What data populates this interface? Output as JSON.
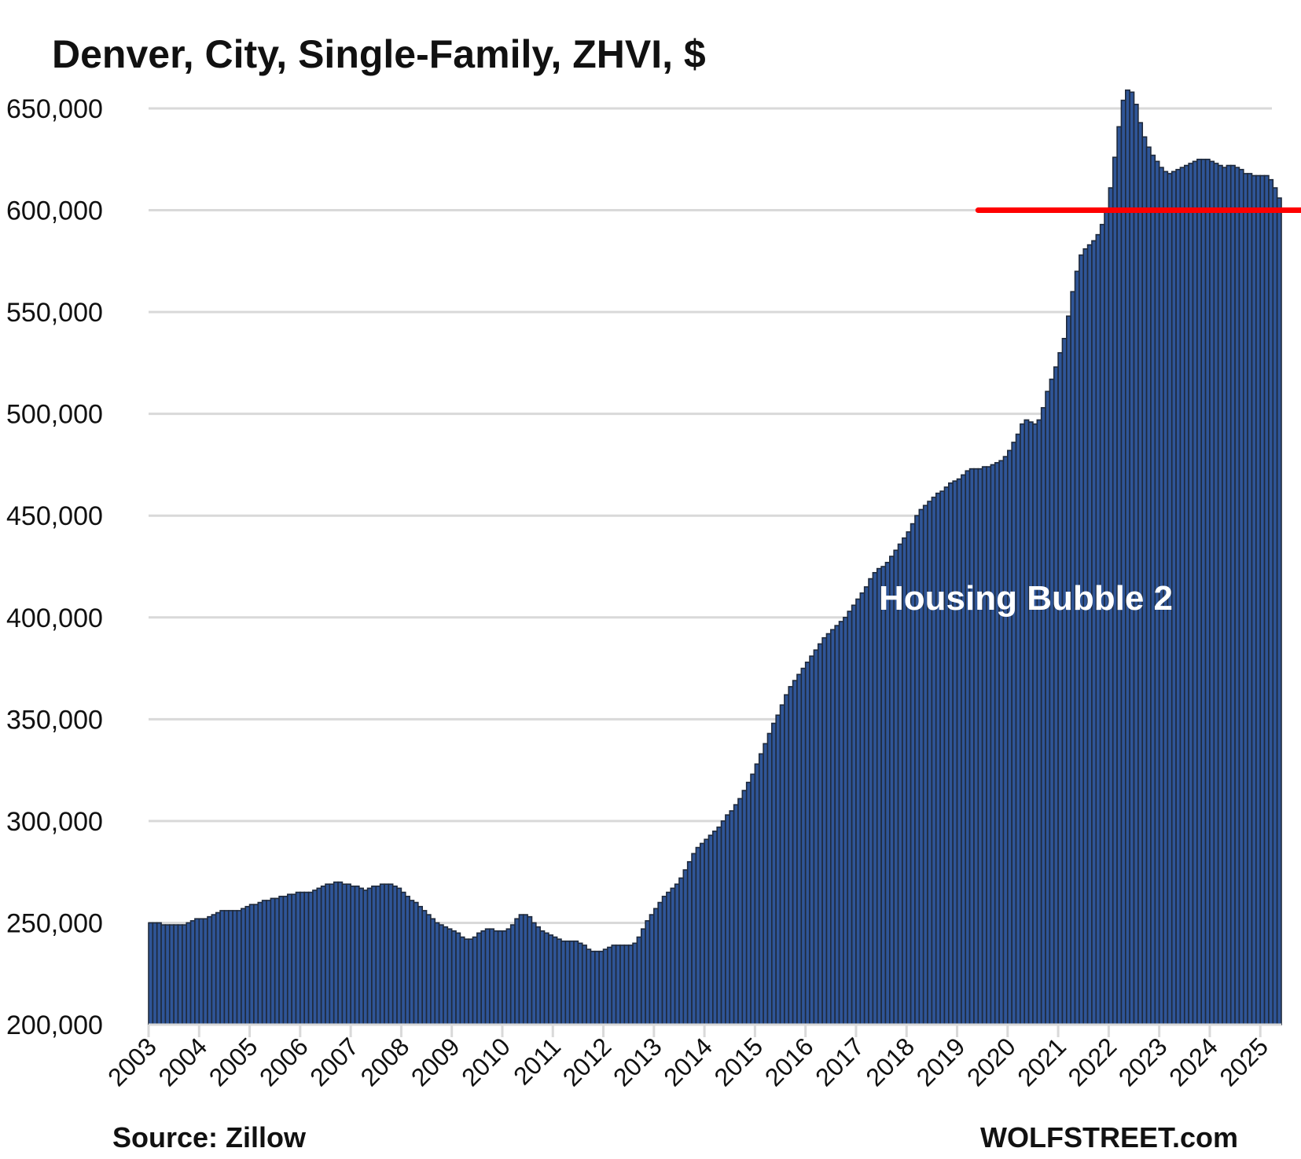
{
  "chart_data": {
    "type": "bar",
    "title": "Denver, City, Single-Family, ZHVI, $",
    "xlabel": "",
    "ylabel": "",
    "ylim": [
      200000,
      650000
    ],
    "yticks": [
      200000,
      250000,
      300000,
      350000,
      400000,
      450000,
      500000,
      550000,
      600000,
      650000
    ],
    "ytick_labels": [
      "200,000",
      "250,000",
      "300,000",
      "350,000",
      "400,000",
      "450,000",
      "500,000",
      "550,000",
      "600,000",
      "650,000"
    ],
    "xtick_labels": [
      "2003",
      "2004",
      "2005",
      "2006",
      "2007",
      "2008",
      "2009",
      "2010",
      "2011",
      "2012",
      "2013",
      "2014",
      "2015",
      "2016",
      "2017",
      "2018",
      "2019",
      "2020",
      "2021",
      "2022",
      "2023",
      "2024",
      "2025"
    ],
    "x_start": "2003-01",
    "frequency": "monthly",
    "grid": true,
    "bar_color": "#2f5597",
    "bar_edge_color": "#1f2a3c",
    "values_thousands": [
      250,
      250,
      250,
      249,
      249,
      249,
      249,
      249,
      249,
      250,
      251,
      252,
      252,
      252,
      253,
      254,
      255,
      256,
      256,
      256,
      256,
      256,
      257,
      258,
      259,
      259,
      260,
      261,
      261,
      262,
      262,
      263,
      263,
      264,
      264,
      265,
      265,
      265,
      265,
      266,
      267,
      268,
      269,
      269,
      270,
      270,
      269,
      269,
      268,
      268,
      267,
      266,
      267,
      268,
      268,
      269,
      269,
      269,
      268,
      267,
      265,
      263,
      261,
      260,
      258,
      256,
      254,
      252,
      250,
      249,
      248,
      247,
      246,
      245,
      243,
      242,
      242,
      243,
      245,
      246,
      247,
      247,
      246,
      246,
      246,
      247,
      249,
      252,
      254,
      254,
      253,
      250,
      248,
      246,
      245,
      244,
      243,
      242,
      241,
      241,
      241,
      241,
      240,
      239,
      237,
      236,
      236,
      236,
      237,
      238,
      239,
      239,
      239,
      239,
      239,
      240,
      243,
      247,
      251,
      254,
      257,
      260,
      263,
      265,
      267,
      269,
      272,
      276,
      280,
      284,
      287,
      289,
      291,
      293,
      295,
      297,
      300,
      303,
      305,
      308,
      311,
      315,
      319,
      323,
      328,
      333,
      338,
      343,
      348,
      352,
      357,
      362,
      366,
      369,
      372,
      375,
      378,
      381,
      384,
      387,
      390,
      392,
      394,
      396,
      398,
      400,
      403,
      406,
      409,
      412,
      415,
      419,
      422,
      424,
      425,
      427,
      430,
      433,
      436,
      439,
      442,
      446,
      450,
      453,
      455,
      457,
      459,
      461,
      462,
      464,
      466,
      467,
      468,
      470,
      472,
      473,
      473,
      473,
      474,
      474,
      475,
      476,
      477,
      479,
      482,
      486,
      490,
      495,
      497,
      496,
      495,
      497,
      503,
      511,
      517,
      523,
      530,
      537,
      548,
      560,
      570,
      578,
      581,
      583,
      585,
      588,
      593,
      600,
      611,
      626,
      641,
      654,
      659,
      658,
      652,
      643,
      636,
      631,
      627,
      624,
      621,
      619,
      618,
      619,
      620,
      621,
      622,
      623,
      624,
      625,
      625,
      625,
      624,
      623,
      622,
      621,
      622,
      622,
      621,
      620,
      618,
      618,
      617,
      617,
      617,
      617,
      615,
      611,
      606
    ],
    "reference_line": {
      "value": 600000,
      "color": "#ff0000",
      "start": "2019-06"
    },
    "annotations": [
      {
        "text": "Housing Bubble 2",
        "near": "2017-2022, inside bars"
      }
    ]
  },
  "footer": {
    "source": "Source: Zillow",
    "brand": "WOLFSTREET.com"
  }
}
